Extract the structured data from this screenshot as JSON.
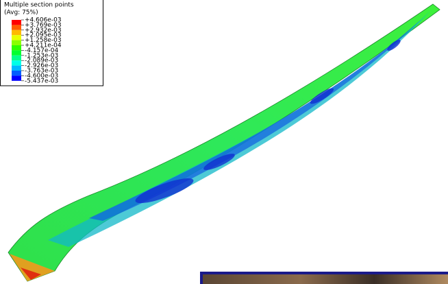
{
  "legend": {
    "header": [
      "Multiple section points",
      "(Avg: 75%)"
    ],
    "labels": [
      "+4.606e-03",
      "+3.769e-03",
      "+2.932e-03",
      "+2.095e-03",
      "+1.258e-03",
      "+4.211e-04",
      "-4.157e-04",
      "-1.253e-03",
      "-2.089e-03",
      "-2.926e-03",
      "-3.763e-03",
      "-4.600e-03",
      "-5.437e-03"
    ],
    "colors": [
      "#ff0000",
      "#ff5d00",
      "#ffb900",
      "#e8ff00",
      "#8bff00",
      "#2eff00",
      "#00ff2e",
      "#00ff8b",
      "#00ffe8",
      "#00b9ff",
      "#005dff",
      "#0000ff"
    ]
  }
}
